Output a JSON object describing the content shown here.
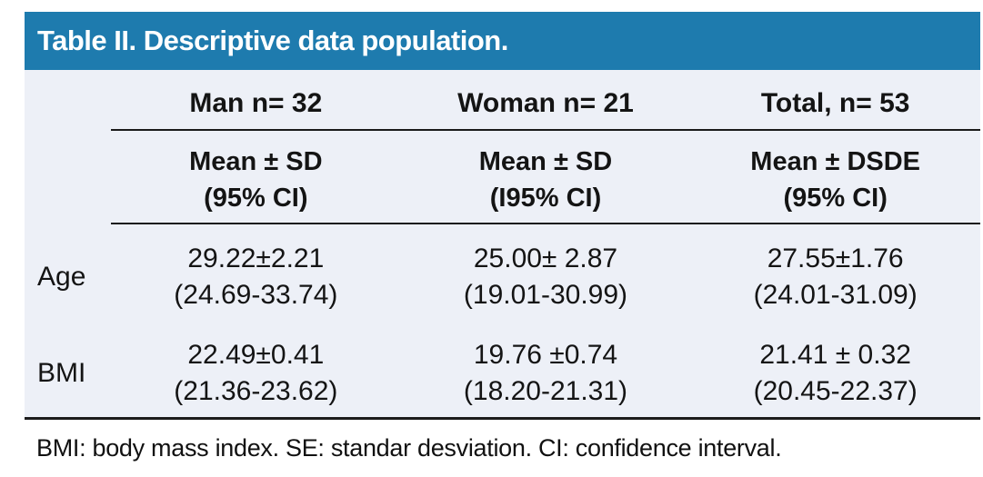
{
  "title": "Table II. Descriptive data population.",
  "colors": {
    "header_bar_bg": "#1e7bae",
    "header_bar_text": "#ffffff",
    "table_body_bg": "#edf0f7",
    "text": "#141414",
    "rule": "#1a1a1a"
  },
  "table": {
    "group_headers": [
      "Man n= 32",
      "Woman n= 21",
      "Total, n= 53"
    ],
    "sub_headers": [
      {
        "line1": "Mean ± SD",
        "line2": "(95% CI)"
      },
      {
        "line1": "Mean ± SD",
        "line2": "(I95% CI)"
      },
      {
        "line1": "Mean ± DSDE",
        "line2": "(95% CI)"
      }
    ],
    "rows": [
      {
        "label": "Age",
        "cells": [
          {
            "line1": "29.22±2.21",
            "line2": "(24.69-33.74)"
          },
          {
            "line1": "25.00± 2.87",
            "line2": "(19.01-30.99)"
          },
          {
            "line1": "27.55±1.76",
            "line2": "(24.01-31.09)"
          }
        ]
      },
      {
        "label": "BMI",
        "cells": [
          {
            "line1": "22.49±0.41",
            "line2": "(21.36-23.62)"
          },
          {
            "line1": "19.76 ±0.74",
            "line2": "(18.20-21.31)"
          },
          {
            "line1": "21.41 ± 0.32",
            "line2": "(20.45-22.37)"
          }
        ]
      }
    ]
  },
  "footnote": "BMI: body mass index. SE: standar desviation. CI: confidence interval."
}
